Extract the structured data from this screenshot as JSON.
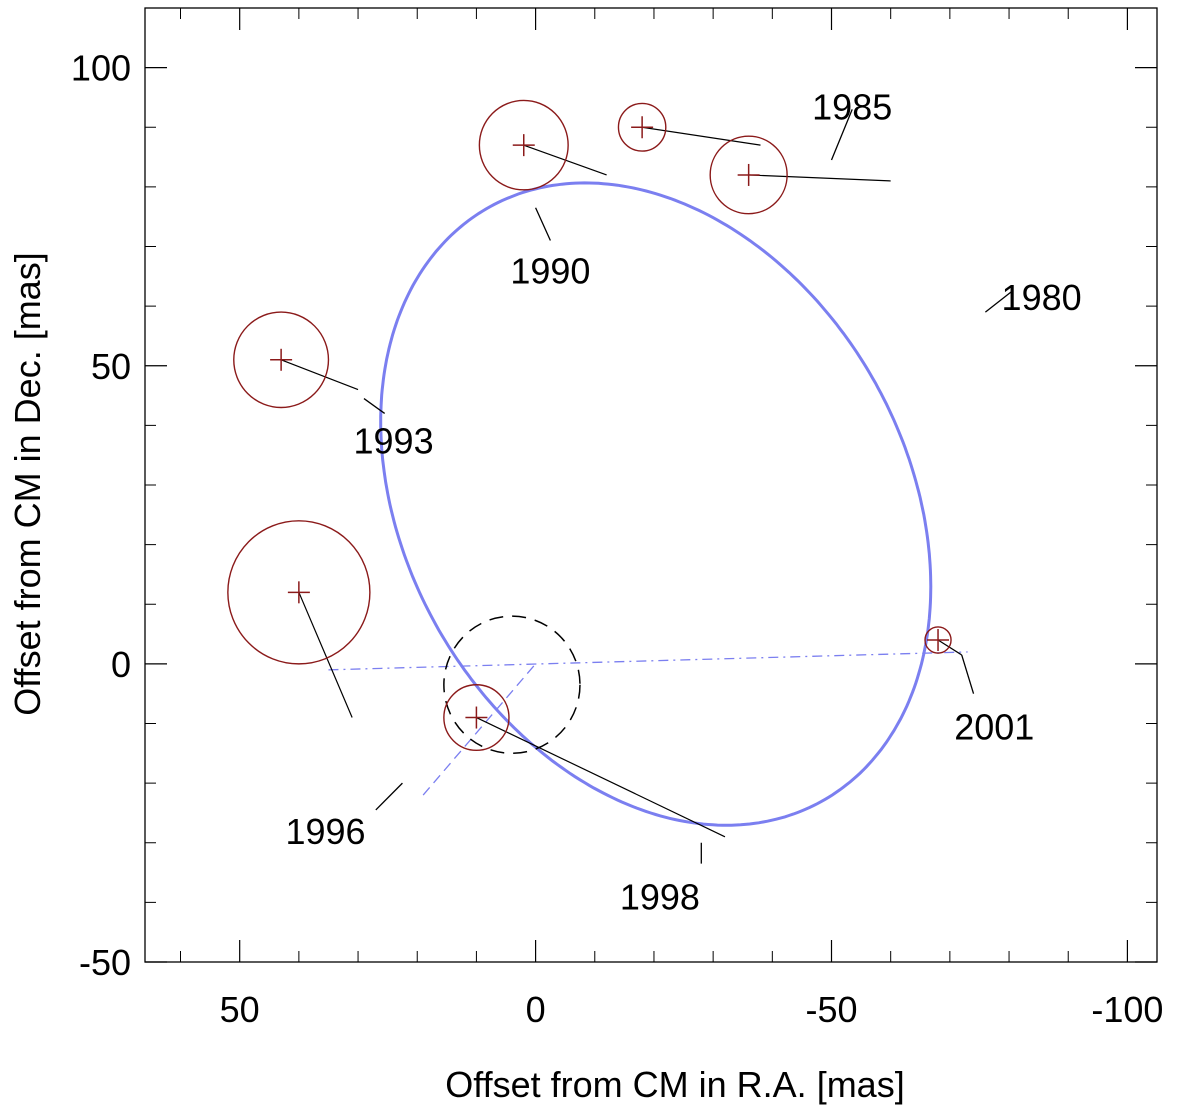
{
  "chart_data": {
    "type": "scatter",
    "title": "",
    "xlabel": "Offset from CM in R.A. [mas]",
    "ylabel": "Offset from CM in Dec. [mas]",
    "xlim": [
      66,
      -105
    ],
    "ylim": [
      -50,
      110
    ],
    "x_axis_reversed": true,
    "x_ticks": [
      {
        "value": 50,
        "label": "50"
      },
      {
        "value": 0,
        "label": "0"
      },
      {
        "value": -50,
        "label": "-50"
      },
      {
        "value": -100,
        "label": "-100"
      }
    ],
    "y_ticks": [
      {
        "value": 100,
        "label": "100"
      },
      {
        "value": 50,
        "label": "50"
      },
      {
        "value": 0,
        "label": "0"
      },
      {
        "value": -50,
        "label": "-50"
      }
    ],
    "x_minor_step": 10,
    "y_minor_step": 10,
    "orbit": {
      "color": "#7b7ff0",
      "center": [
        -20.3,
        26.8
      ],
      "semi_axes": [
        57.2,
        42.3
      ],
      "rotation_deg": 60
    },
    "observations": [
      {
        "epoch": "1985",
        "x": -18,
        "y": 90,
        "error_radius": 4,
        "orbit_point": [
          -38.0,
          87.0
        ]
      },
      {
        "epoch": "1980",
        "x": -36,
        "y": 82,
        "error_radius": 6.5,
        "orbit_point": [
          -60.0,
          81.0
        ]
      },
      {
        "epoch": "1990",
        "x": 2,
        "y": 87,
        "error_radius": 7.5,
        "orbit_point": [
          -12.0,
          82.0
        ]
      },
      {
        "epoch": "1993",
        "x": 43,
        "y": 51,
        "error_radius": 8,
        "orbit_point": [
          30.0,
          46.0
        ]
      },
      {
        "epoch": "1996",
        "x": 40,
        "y": 12,
        "error_radius": 12,
        "orbit_point": [
          31.0,
          -9.0
        ]
      },
      {
        "epoch": "1998",
        "x": 10,
        "y": -9,
        "error_radius": 5.5,
        "orbit_point": [
          -32.0,
          -29.0
        ]
      },
      {
        "epoch": "2001",
        "x": -68,
        "y": 4,
        "error_radius": 2.2,
        "orbit_point": [
          -72.0,
          1.5
        ]
      }
    ],
    "epoch_labels": [
      {
        "text": "1985",
        "tick_on_orbit": [
          -50.0,
          84.5
        ],
        "leader_end": [
          -53.5,
          93.0
        ],
        "text_at": [
          -53.5,
          93.5
        ]
      },
      {
        "text": "1980",
        "tick_on_orbit": [
          -76.0,
          59.0
        ],
        "leader_end": [
          -80.5,
          62.5
        ],
        "text_at": [
          -85.5,
          61.5
        ]
      },
      {
        "text": "1990",
        "tick_on_orbit": [
          0.0,
          76.5
        ],
        "leader_end": [
          -2.5,
          71.0
        ],
        "text_at": [
          -2.5,
          66.0
        ]
      },
      {
        "text": "1993",
        "tick_on_orbit": [
          29.0,
          44.5
        ],
        "leader_end": [
          25.5,
          42.0
        ],
        "text_at": [
          24.0,
          37.5
        ]
      },
      {
        "text": "1996",
        "tick_on_orbit": [
          22.5,
          -20.0
        ],
        "leader_end": [
          27.0,
          -24.5
        ],
        "text_at": [
          35.5,
          -28.0
        ]
      },
      {
        "text": "1998",
        "tick_on_orbit": [
          -28.0,
          -30.0
        ],
        "leader_end": [
          -28.0,
          -33.5
        ],
        "text_at": [
          -21.0,
          -39.0
        ]
      },
      {
        "text": "2001",
        "tick_on_orbit": [
          -72.0,
          1.5
        ],
        "leader_end": [
          -74.0,
          -5.0
        ],
        "text_at": [
          -77.5,
          -10.5
        ]
      }
    ],
    "line_of_nodes": {
      "from": [
        35,
        -1
      ],
      "to": [
        -73,
        2
      ],
      "color": "#7b7ff0",
      "style": "dash-dot"
    },
    "apsides_line": {
      "from": [
        19,
        -22
      ],
      "to": [
        0,
        0
      ],
      "color": "#7b7ff0",
      "style": "dashed"
    },
    "center_of_mass_uncertainty": {
      "x": 4,
      "y": -3.5,
      "radius": 11.5,
      "style": "dashed",
      "color": "#000000"
    },
    "marker_color": "#8b1a1a"
  }
}
